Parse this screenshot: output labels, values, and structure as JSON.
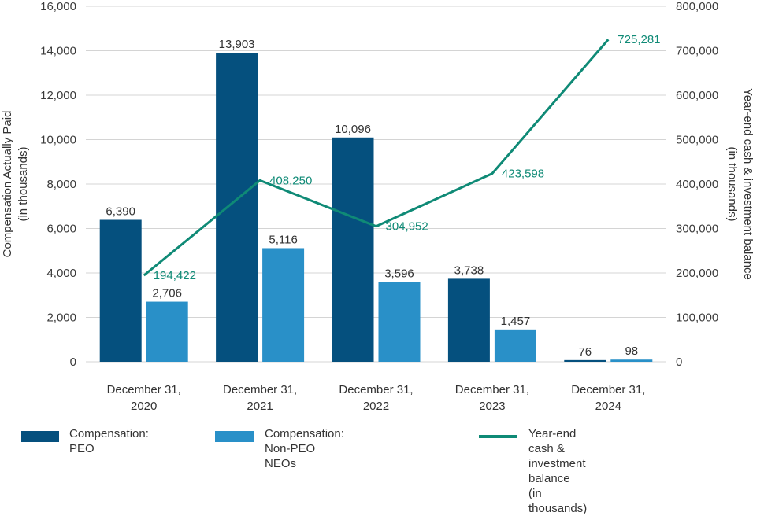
{
  "chart_data": {
    "type": "bar",
    "categories": [
      [
        "December 31,",
        "2020"
      ],
      [
        "December 31,",
        "2021"
      ],
      [
        "December 31,",
        "2022"
      ],
      [
        "December 31,",
        "2023"
      ],
      [
        "December 31,",
        "2024"
      ]
    ],
    "series": [
      {
        "name": "Compensation: PEO",
        "type": "bar",
        "axis": "left",
        "color": "#05507e",
        "values": [
          6390,
          13903,
          10096,
          3738,
          76
        ]
      },
      {
        "name": "Compensation: Non-PEO NEOs",
        "type": "bar",
        "axis": "left",
        "color": "#2990c8",
        "values": [
          2706,
          5116,
          3596,
          1457,
          98
        ]
      },
      {
        "name": "Year-end cash & investment balance\n(in thousands)",
        "type": "line",
        "axis": "right",
        "color": "#0f8a76",
        "values": [
          194422,
          408250,
          304952,
          423598,
          725281
        ]
      }
    ],
    "data_labels": {
      "peo": [
        "6,390",
        "13,903",
        "10,096",
        "3,738",
        "76"
      ],
      "non_peo": [
        "2,706",
        "5,116",
        "3,596",
        "1,457",
        "98"
      ],
      "cash": [
        "194,422",
        "408,250",
        "304,952",
        "423,598",
        "725,281"
      ]
    },
    "ylabel_left": [
      "Compensation Actually Paid",
      "(in thousands)"
    ],
    "ylabel_right": [
      "Year-end cash & investment balance",
      "(in thousands)"
    ],
    "ylim_left": [
      0,
      16000
    ],
    "ylim_right": [
      0,
      800000
    ],
    "left_ticks": [
      "0",
      "2,000",
      "4,000",
      "6,000",
      "8,000",
      "10,000",
      "12,000",
      "14,000",
      "16,000"
    ],
    "right_ticks": [
      "0",
      "100,000",
      "200,000",
      "300,000",
      "400,000",
      "500,000",
      "600,000",
      "700,000",
      "800,000"
    ],
    "grid": true,
    "legend_position": "bottom"
  },
  "legend": {
    "peo": "Compensation: PEO",
    "non_peo": "Compensation: Non-PEO NEOs",
    "cash": "Year-end cash & investment balance\n(in thousands)"
  },
  "colors": {
    "peo": "#05507e",
    "non_peo": "#2990c8",
    "cash": "#0f8a76"
  }
}
